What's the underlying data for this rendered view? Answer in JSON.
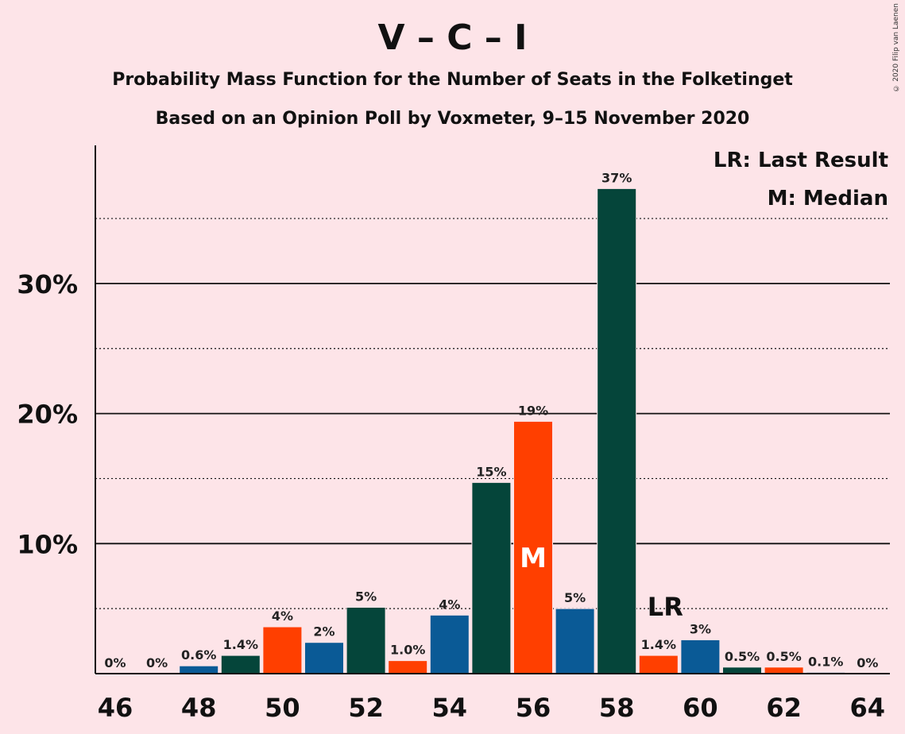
{
  "title": "V – C – I",
  "subtitle1": "Probability Mass Function for the Number of Seats in the Folketinget",
  "subtitle2": "Based on an Opinion Poll by Voxmeter, 9–15 November 2020",
  "copyright": "© 2020 Filip van Laenen",
  "legend": {
    "lr": "LR: Last Result",
    "m": "M: Median"
  },
  "colors": {
    "blue": "#0a5a96",
    "green": "#05453a",
    "orange": "#ff3f00",
    "background": "#fde4e8"
  },
  "chart_data": {
    "type": "bar",
    "x": [
      46,
      47,
      48,
      49,
      50,
      51,
      52,
      53,
      54,
      55,
      56,
      57,
      58,
      59,
      60,
      61,
      62,
      63,
      64
    ],
    "values": [
      0,
      0,
      0.6,
      1.4,
      3.6,
      2.4,
      5.1,
      1.0,
      4.5,
      14.7,
      19.4,
      5.0,
      37.3,
      1.4,
      2.6,
      0.5,
      0.5,
      0.1,
      0
    ],
    "labels": [
      "0%",
      "0%",
      "0.6%",
      "1.4%",
      "4%",
      "2%",
      "5%",
      "1.0%",
      "4%",
      "15%",
      "19%",
      "5%",
      "37%",
      "1.4%",
      "3%",
      "0.5%",
      "0.5%",
      "0.1%",
      "0%"
    ],
    "bar_colors": [
      "blue",
      "green",
      "blue",
      "green",
      "orange",
      "blue",
      "green",
      "orange",
      "blue",
      "green",
      "orange",
      "blue",
      "green",
      "orange",
      "blue",
      "green",
      "orange",
      "blue",
      "green"
    ],
    "xticks": [
      46,
      48,
      50,
      52,
      54,
      56,
      58,
      60,
      62,
      64
    ],
    "yticks": [
      10,
      20,
      30
    ],
    "ytick_labels": [
      "10%",
      "20%",
      "30%"
    ],
    "minor_gridlines": [
      5,
      15,
      25,
      35
    ],
    "ylim": [
      0,
      40
    ],
    "median_seat": 56,
    "median_mark": "M",
    "last_result_seat": 59,
    "last_result_mark": "LR",
    "legend_position": "top-right"
  }
}
